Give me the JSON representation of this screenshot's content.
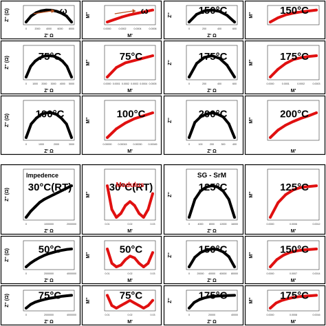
{
  "annotations": {
    "impedance_label": "Impedence",
    "modulus_label": "Modulus",
    "sample_label": "SG - SrM",
    "omega": "ω"
  },
  "colors": {
    "impedance": "#000000",
    "modulus": "#e01010",
    "border": "#000000",
    "axis": "#333333"
  },
  "chart_data": [
    {
      "type": "scatter",
      "kind": "impedance",
      "temp_label": "",
      "xlabel": "Z' Ω",
      "ylabel": "Z'' (Ω)",
      "x_ticks": [
        "0",
        "2000",
        "4000",
        "6000",
        "8000"
      ],
      "show_omega": true,
      "series": [
        {
          "name": "",
          "x": [
            0,
            1000,
            2000,
            3000,
            4000,
            5000,
            6000,
            7000,
            8000,
            9000
          ],
          "y": [
            0,
            1600,
            2500,
            3000,
            3200,
            3150,
            2900,
            2400,
            1600,
            0
          ]
        }
      ]
    },
    {
      "type": "scatter",
      "kind": "modulus",
      "temp_label": "",
      "xlabel": "M'",
      "ylabel": "M''",
      "x_ticks": [
        "0.0000",
        "0.0002",
        "0.0004",
        "0.0006"
      ],
      "show_omega": true,
      "series": [
        {
          "name": "",
          "x": [
            0,
            0.0001,
            0.0002,
            0.0003,
            0.0004,
            0.0005,
            0.0006
          ],
          "y": [
            0,
            5e-05,
            0.0001,
            0.00014,
            0.00017,
            0.0002,
            0.00023
          ]
        }
      ]
    },
    {
      "type": "scatter",
      "kind": "impedance",
      "temp_label": "150°C",
      "xlabel": "Z' Ω",
      "ylabel": "Z''",
      "x_ticks": [
        "0",
        "200",
        "400",
        "600"
      ],
      "series": [
        {
          "name": "",
          "x": [
            0,
            100,
            200,
            300,
            400,
            500,
            600
          ],
          "y": [
            0,
            90,
            130,
            140,
            125,
            80,
            0
          ]
        }
      ]
    },
    {
      "type": "scatter",
      "kind": "modulus",
      "temp_label": "150°C",
      "xlabel": "",
      "ylabel": "M''",
      "x_ticks": [],
      "series": [
        {
          "name": "",
          "x": [
            0,
            0.1,
            0.2,
            0.3,
            0.4,
            0.5,
            0.6
          ],
          "y": [
            0,
            0.35,
            0.6,
            0.75,
            0.85,
            0.92,
            1
          ]
        }
      ]
    },
    {
      "type": "scatter",
      "kind": "impedance",
      "temp_label": "75°C",
      "xlabel": "Z' Ω",
      "ylabel": "Z'' (Ω)",
      "x_ticks": [
        "0",
        "1000",
        "2000",
        "3000",
        "4000",
        "5000"
      ],
      "series": [
        {
          "name": "",
          "x": [
            0,
            500,
            1000,
            1500,
            2000,
            2500,
            3000,
            3500,
            4000,
            4500,
            5000
          ],
          "y": [
            0,
            1200,
            1800,
            2150,
            2350,
            2400,
            2350,
            2150,
            1800,
            1200,
            0
          ]
        }
      ]
    },
    {
      "type": "scatter",
      "kind": "modulus",
      "temp_label": "75°C",
      "xlabel": "M'",
      "ylabel": "M''",
      "x_ticks": [
        "0.0000",
        "0.0001",
        "0.0002",
        "0.0003",
        "0.0004",
        "0.0005"
      ],
      "series": [
        {
          "name": "",
          "x": [
            0,
            0.0001,
            0.0002,
            0.0003,
            0.0004,
            0.0005
          ],
          "y": [
            0,
            8e-05,
            0.00012,
            0.00014,
            0.00016,
            0.00018
          ]
        }
      ]
    },
    {
      "type": "scatter",
      "kind": "impedance",
      "temp_label": "175°C",
      "xlabel": "Z' Ω",
      "ylabel": "Z''",
      "x_ticks": [
        "0",
        "200",
        "400",
        "600"
      ],
      "series": [
        {
          "name": "",
          "x": [
            0,
            100,
            200,
            300,
            400,
            500,
            600
          ],
          "y": [
            0,
            80,
            115,
            125,
            110,
            70,
            0
          ]
        }
      ]
    },
    {
      "type": "scatter",
      "kind": "modulus",
      "temp_label": "175°C",
      "xlabel": "M'",
      "ylabel": "M''",
      "x_ticks": [
        "0.0000",
        "0.0001",
        "0.0002",
        "0.0003"
      ],
      "series": [
        {
          "name": "",
          "x": [
            0,
            5e-05,
            0.0001,
            0.00015,
            0.0002,
            0.00025,
            0.0003
          ],
          "y": [
            0,
            0.0002,
            0.00035,
            0.00045,
            0.0005,
            0.00053,
            0.00055
          ]
        }
      ]
    },
    {
      "type": "scatter",
      "kind": "impedance",
      "temp_label": "100°C",
      "xlabel": "Z' Ω",
      "ylabel": "Z'' (Ω)",
      "x_ticks": [
        "0",
        "1000",
        "2000",
        "3000"
      ],
      "series": [
        {
          "name": "",
          "x": [
            0,
            300,
            600,
            900,
            1200,
            1500,
            1800,
            2100,
            2400,
            2700
          ],
          "y": [
            0,
            700,
            1000,
            1200,
            1280,
            1280,
            1200,
            1000,
            700,
            0
          ]
        }
      ]
    },
    {
      "type": "scatter",
      "kind": "modulus",
      "temp_label": "100°C",
      "xlabel": "M'",
      "ylabel": "M''",
      "x_ticks": [
        "0.00000",
        "0.00015",
        "0.00030",
        "0.00045"
      ],
      "series": [
        {
          "name": "",
          "x": [
            0,
            0.0001,
            0.0002,
            0.0003,
            0.0004,
            0.0005
          ],
          "y": [
            0,
            6e-05,
            0.0001,
            0.00013,
            0.00015,
            0.00017
          ]
        }
      ]
    },
    {
      "type": "scatter",
      "kind": "impedance",
      "temp_label": "200°C",
      "xlabel": "Z' Ω",
      "ylabel": "Z''",
      "x_ticks": [
        "0",
        "100",
        "200",
        "300",
        "400"
      ],
      "series": [
        {
          "name": "",
          "x": [
            0,
            50,
            100,
            150,
            200,
            250,
            300,
            350,
            400
          ],
          "y": [
            0,
            55,
            75,
            85,
            90,
            85,
            75,
            50,
            0
          ]
        }
      ]
    },
    {
      "type": "scatter",
      "kind": "modulus",
      "temp_label": "200°C",
      "xlabel": "M'",
      "ylabel": "M''",
      "x_ticks": [],
      "series": [
        {
          "name": "",
          "x": [
            0,
            0.05,
            0.1,
            0.15,
            0.2,
            0.25,
            0.3
          ],
          "y": [
            0,
            0.3,
            0.5,
            0.65,
            0.78,
            0.88,
            1
          ]
        }
      ]
    },
    {
      "type": "scatter",
      "kind": "impedance",
      "temp_label": "30°C(RT)",
      "xlabel": "Z' Ω",
      "ylabel": "Z'' (Ω)",
      "x_ticks": [
        "0",
        "1000000",
        "2000000"
      ],
      "show_impedance_label": true,
      "series": [
        {
          "name": "",
          "x": [
            0,
            200000,
            400000,
            600000,
            800000,
            1000000,
            1200000,
            1400000,
            1600000,
            1800000,
            2000000
          ],
          "y": [
            0,
            400000,
            700000,
            1000000,
            1200000,
            1350000,
            1500000,
            1650000,
            1800000,
            1950000,
            2100000
          ]
        }
      ]
    },
    {
      "type": "scatter",
      "kind": "modulus",
      "temp_label": "30°C(RT)",
      "xlabel": "M'",
      "ylabel": "M''",
      "x_ticks": [
        "0.01",
        "0.02",
        "0.03"
      ],
      "show_modulus_label": true,
      "series": [
        {
          "name": "",
          "x": [
            0.005,
            0.008,
            0.011,
            0.014,
            0.017,
            0.02,
            0.023,
            0.026,
            0.029,
            0.032,
            0.035
          ],
          "y": [
            0.0017,
            0.0011,
            0.0009,
            0.001,
            0.0012,
            0.0013,
            0.0012,
            0.001,
            0.0009,
            0.0011,
            0.0015
          ]
        }
      ]
    },
    {
      "type": "scatter",
      "kind": "impedance",
      "temp_label": "125°C",
      "xlabel": "Z' Ω",
      "ylabel": "Z''",
      "x_ticks": [
        "0",
        "4000",
        "8000",
        "12000",
        "16000"
      ],
      "show_sample_label": true,
      "series": [
        {
          "name": "",
          "x": [
            0,
            2000,
            4000,
            6000,
            8000,
            10000,
            12000,
            14000,
            16000
          ],
          "y": [
            0,
            3000,
            4400,
            5100,
            5300,
            5100,
            4400,
            3000,
            0
          ]
        }
      ]
    },
    {
      "type": "scatter",
      "kind": "modulus",
      "temp_label": "125°C",
      "xlabel": "M'",
      "ylabel": "M''",
      "x_ticks": [
        "0.0000",
        "0.0006",
        "0.0012"
      ],
      "series": [
        {
          "name": "",
          "x": [
            0,
            0.0002,
            0.0004,
            0.0006,
            0.0008,
            0.001,
            0.0012
          ],
          "y": [
            0,
            0.00018,
            0.00028,
            0.00034,
            0.00037,
            0.00038,
            0.00039
          ]
        }
      ]
    },
    {
      "type": "scatter",
      "kind": "impedance",
      "temp_label": "50°C",
      "xlabel": "Z' Ω",
      "ylabel": "Z'' (Ω)",
      "x_ticks": [
        "0",
        "2000000",
        "4000000"
      ],
      "series": [
        {
          "name": "",
          "x": [
            0,
            400000,
            800000,
            1200000,
            1600000,
            2000000,
            2400000,
            2800000,
            3200000,
            3600000,
            4000000
          ],
          "y": [
            0,
            450000,
            800000,
            1100000,
            1350000,
            1550000,
            1700000,
            1850000,
            1950000,
            2050000,
            2100000
          ]
        }
      ]
    },
    {
      "type": "scatter",
      "kind": "modulus",
      "temp_label": "50°C",
      "xlabel": "M'",
      "ylabel": "M''",
      "x_ticks": [
        "0.01",
        "0.02",
        "0.03"
      ],
      "series": [
        {
          "name": "",
          "x": [
            0.005,
            0.008,
            0.011,
            0.014,
            0.017,
            0.02,
            0.023,
            0.026,
            0.029,
            0.032,
            0.035
          ],
          "y": [
            0.0014,
            0.001,
            0.0009,
            0.00095,
            0.0011,
            0.0012,
            0.00115,
            0.001,
            0.0009,
            0.001,
            0.0013
          ]
        }
      ]
    },
    {
      "type": "scatter",
      "kind": "impedance",
      "temp_label": "150°C",
      "xlabel": "Z' Ω",
      "ylabel": "Z''",
      "x_ticks": [
        "0",
        "20000",
        "40000",
        "60000",
        "80000"
      ],
      "series": [
        {
          "name": "",
          "x": [
            0,
            10000,
            20000,
            30000,
            40000,
            50000,
            60000,
            70000,
            80000
          ],
          "y": [
            0,
            16000,
            24000,
            28000,
            30000,
            29000,
            25000,
            17000,
            0
          ]
        }
      ]
    },
    {
      "type": "scatter",
      "kind": "modulus",
      "temp_label": "150°C",
      "xlabel": "M'",
      "ylabel": "M''",
      "x_ticks": [
        "0.0000",
        "0.0007",
        "0.0014"
      ],
      "series": [
        {
          "name": "",
          "x": [
            0,
            0.0002,
            0.0004,
            0.0006,
            0.0008,
            0.001,
            0.0012,
            0.0014
          ],
          "y": [
            0,
            0.00015,
            0.00024,
            0.0003,
            0.00033,
            0.00035,
            0.00036,
            0.00037
          ]
        }
      ]
    },
    {
      "type": "scatter",
      "kind": "impedance",
      "temp_label": "75°C",
      "xlabel": "Z' Ω",
      "ylabel": "Z'' (Ω)",
      "x_ticks": [
        "0",
        "2000000",
        "4000000"
      ],
      "series": [
        {
          "name": "",
          "x": [
            0,
            400000,
            800000,
            1200000,
            1600000,
            2000000,
            2400000,
            2800000,
            3200000,
            3600000,
            4000000
          ],
          "y": [
            0,
            250000,
            400000,
            500000,
            580000,
            650000,
            700000,
            750000,
            800000,
            830000,
            860000
          ]
        }
      ]
    },
    {
      "type": "scatter",
      "kind": "modulus",
      "temp_label": "75°C",
      "xlabel": "M'",
      "ylabel": "M''",
      "x_ticks": [
        "0.01",
        "0.02",
        "0.03"
      ],
      "series": [
        {
          "name": "",
          "x": [
            0.005,
            0.008,
            0.011,
            0.014,
            0.017,
            0.02,
            0.023,
            0.026,
            0.029,
            0.032,
            0.035
          ],
          "y": [
            0.0012,
            0.001,
            0.00095,
            0.001,
            0.00105,
            0.0011,
            0.00105,
            0.001,
            0.00095,
            0.001,
            0.0011
          ]
        }
      ]
    },
    {
      "type": "scatter",
      "kind": "impedance",
      "temp_label": "175°C",
      "xlabel": "Z' Ω",
      "ylabel": "Z''",
      "x_ticks": [
        "0",
        "20000",
        "40000"
      ],
      "series": [
        {
          "name": "",
          "x": [
            0,
            5000,
            10000,
            15000,
            20000,
            25000,
            30000,
            35000,
            40000,
            45000
          ],
          "y": [
            0,
            5000,
            7500,
            9000,
            10000,
            10500,
            10800,
            11000,
            11200,
            11300
          ]
        }
      ]
    },
    {
      "type": "scatter",
      "kind": "modulus",
      "temp_label": "175°C",
      "xlabel": "M'",
      "ylabel": "M''",
      "x_ticks": [
        "0.0000",
        "0.0008",
        "0.0016"
      ],
      "series": [
        {
          "name": "",
          "x": [
            0,
            0.0002,
            0.0004,
            0.0006,
            0.0008,
            0.001,
            0.0012,
            0.0014,
            0.0016
          ],
          "y": [
            0,
            0.00012,
            0.00018,
            0.00022,
            0.00025,
            0.00027,
            0.00028,
            0.00029,
            0.0003
          ]
        }
      ]
    }
  ]
}
